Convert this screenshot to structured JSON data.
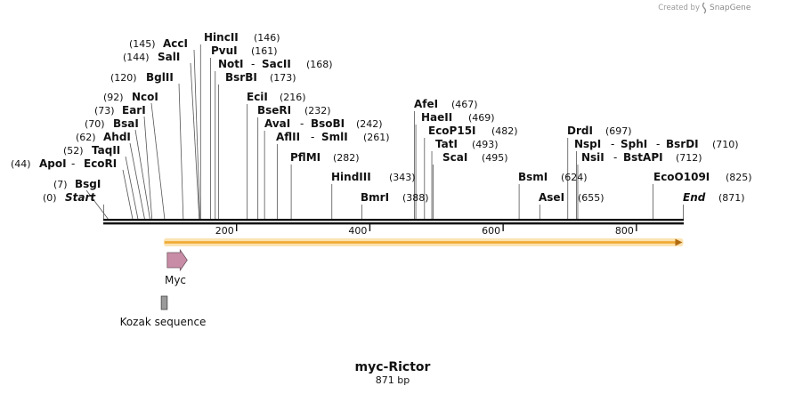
{
  "header": {
    "created_by": "Created by",
    "brand": "SnapGene"
  },
  "map": {
    "total_bp": 871,
    "title": "myc-Rictor",
    "subtitle": "871 bp"
  },
  "sites": [
    {
      "name": "Start",
      "pos": "0",
      "italic": true
    },
    {
      "name": "BsgI",
      "pos": "7"
    },
    {
      "name": "ApoI",
      "pos": "44",
      "extra": "EcoRI"
    },
    {
      "name": "TaqII",
      "pos": "52"
    },
    {
      "name": "AhdI",
      "pos": "62"
    },
    {
      "name": "BsaI",
      "pos": "70"
    },
    {
      "name": "EarI",
      "pos": "73"
    },
    {
      "name": "NcoI",
      "pos": "92"
    },
    {
      "name": "BglII",
      "pos": "120"
    },
    {
      "name": "SalI",
      "pos": "144"
    },
    {
      "name": "AccI",
      "pos": "145"
    },
    {
      "name": "HincII",
      "pos": "146"
    },
    {
      "name": "PvuI",
      "pos": "161"
    },
    {
      "name": "NotI",
      "pos": "168",
      "extra": "SacII"
    },
    {
      "name": "BsrBI",
      "pos": "173"
    },
    {
      "name": "EciI",
      "pos": "216"
    },
    {
      "name": "BseRI",
      "pos": "232"
    },
    {
      "name": "AvaI",
      "pos": "242",
      "extra": "BsoBI"
    },
    {
      "name": "AflII",
      "pos": "261",
      "extra": "SmlI"
    },
    {
      "name": "PflMI",
      "pos": "282"
    },
    {
      "name": "HindIII",
      "pos": "343"
    },
    {
      "name": "BmrI",
      "pos": "388"
    },
    {
      "name": "AfeI",
      "pos": "467"
    },
    {
      "name": "HaeII",
      "pos": "469"
    },
    {
      "name": "EcoP15I",
      "pos": "482"
    },
    {
      "name": "TatI",
      "pos": "493"
    },
    {
      "name": "ScaI",
      "pos": "495"
    },
    {
      "name": "BsmI",
      "pos": "624"
    },
    {
      "name": "AseI",
      "pos": "655"
    },
    {
      "name": "DrdI",
      "pos": "697"
    },
    {
      "name": "NspI",
      "pos": "710",
      "extra": "SphI",
      "extra2": "BsrDI"
    },
    {
      "name": "NsiI",
      "pos": "712",
      "extra": "BstAPI"
    },
    {
      "name": "EcoO109I",
      "pos": "825"
    },
    {
      "name": "End",
      "pos": "871",
      "italic": true
    }
  ],
  "axis": {
    "ticks": [
      {
        "value": 200,
        "label": "200"
      },
      {
        "value": 400,
        "label": "400"
      },
      {
        "value": 600,
        "label": "600"
      },
      {
        "value": 800,
        "label": "800"
      }
    ]
  },
  "features": {
    "orf": {
      "start": 92,
      "end": 869,
      "color": "#f0a830"
    },
    "myc": {
      "label": "Myc",
      "start": 96,
      "end": 126,
      "color": "#c98ca7"
    },
    "kozak": {
      "label": "Kozak sequence",
      "start": 87,
      "end": 96,
      "color": "#9a9a9a"
    }
  }
}
